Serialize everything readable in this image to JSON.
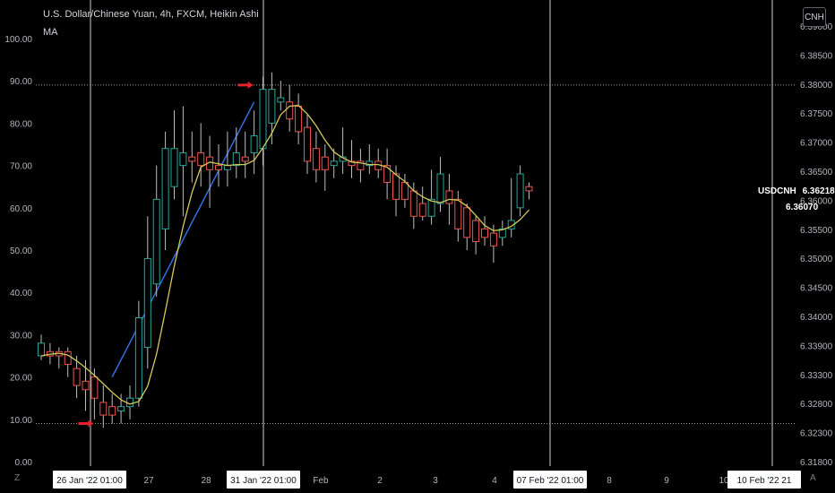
{
  "header": {
    "title": "U.S. Dollar/Chinese Yuan, 4h, FXCM, Heikin Ashi",
    "indicator": "MA",
    "currency_button": "CNH",
    "corner_left": "Z",
    "corner_right": "A"
  },
  "price_badge": {
    "symbol": "USDCNH",
    "last": "6.36218",
    "ma": "6.36070"
  },
  "colors": {
    "up": "#26a69a",
    "down": "#ef5350",
    "ma": "#d4c95a",
    "trend": "#2f6fe0",
    "arrow": "#e8212c",
    "grid_vertical": "#cfcfcf",
    "grid_dotted": "#9598a1"
  },
  "chart_data": {
    "type": "candlestick",
    "left_axis": {
      "ticks": [
        "100.00",
        "90.00",
        "80.00",
        "70.00",
        "60.00",
        "50.00",
        "40.00",
        "30.00",
        "20.00",
        "10.00",
        "0.00"
      ],
      "range": [
        0,
        100
      ]
    },
    "right_axis": {
      "ticks": [
        "6.39000",
        "6.38500",
        "6.38000",
        "6.37500",
        "6.37000",
        "6.36500",
        "6.36000",
        "6.35500",
        "6.35000",
        "6.34500",
        "6.34000",
        "6.33900",
        "6.33300",
        "6.32800",
        "6.32300",
        "6.31800"
      ]
    },
    "x_axis": {
      "ticks": [
        "26 Jan '22   01:00",
        "27",
        "28",
        "31 Jan '22   01:00",
        "Feb",
        "2",
        "3",
        "4",
        "07 Feb '22   01:00",
        "8",
        "9",
        "10",
        "10 Feb '22   21"
      ],
      "highlighted": [
        "26 Jan '22   01:00",
        "31 Jan '22   01:00",
        "07 Feb '22   01:00",
        "10 Feb '22   21"
      ]
    },
    "candles": [
      {
        "o": 25,
        "c": 28,
        "h": 30,
        "l": 24
      },
      {
        "o": 26,
        "c": 25,
        "h": 28,
        "l": 23
      },
      {
        "o": 26,
        "c": 25,
        "h": 27,
        "l": 22
      },
      {
        "o": 26,
        "c": 23,
        "h": 27,
        "l": 20
      },
      {
        "o": 22,
        "c": 18,
        "h": 25,
        "l": 15
      },
      {
        "o": 19,
        "c": 17,
        "h": 24,
        "l": 12
      },
      {
        "o": 20,
        "c": 15,
        "h": 22,
        "l": 10
      },
      {
        "o": 14,
        "c": 11,
        "h": 18,
        "l": 8
      },
      {
        "o": 13,
        "c": 11,
        "h": 16,
        "l": 9
      },
      {
        "o": 12,
        "c": 13,
        "h": 16,
        "l": 9
      },
      {
        "o": 13,
        "c": 15,
        "h": 18,
        "l": 10
      },
      {
        "o": 15,
        "c": 34,
        "h": 38,
        "l": 13
      },
      {
        "o": 27,
        "c": 48,
        "h": 58,
        "l": 22
      },
      {
        "o": 42,
        "c": 62,
        "h": 70,
        "l": 39
      },
      {
        "o": 55,
        "c": 74,
        "h": 78,
        "l": 50
      },
      {
        "o": 65,
        "c": 74,
        "h": 83,
        "l": 62
      },
      {
        "o": 70,
        "c": 73,
        "h": 84,
        "l": 58
      },
      {
        "o": 72,
        "c": 71,
        "h": 78,
        "l": 66
      },
      {
        "o": 73,
        "c": 70,
        "h": 80,
        "l": 65
      },
      {
        "o": 72,
        "c": 69,
        "h": 77,
        "l": 60
      },
      {
        "o": 70,
        "c": 69,
        "h": 75,
        "l": 65
      },
      {
        "o": 69,
        "c": 70,
        "h": 78,
        "l": 65
      },
      {
        "o": 70,
        "c": 73,
        "h": 79,
        "l": 67
      },
      {
        "o": 72,
        "c": 71,
        "h": 78,
        "l": 67
      },
      {
        "o": 73,
        "c": 77,
        "h": 83,
        "l": 68
      },
      {
        "o": 74,
        "c": 88,
        "h": 91,
        "l": 70
      },
      {
        "o": 80,
        "c": 88,
        "h": 92,
        "l": 75
      },
      {
        "o": 85,
        "c": 86,
        "h": 90,
        "l": 83
      },
      {
        "o": 85,
        "c": 81,
        "h": 89,
        "l": 78
      },
      {
        "o": 84,
        "c": 78,
        "h": 87,
        "l": 75
      },
      {
        "o": 79,
        "c": 71,
        "h": 82,
        "l": 68
      },
      {
        "o": 74,
        "c": 69,
        "h": 78,
        "l": 66
      },
      {
        "o": 72,
        "c": 69,
        "h": 75,
        "l": 64
      },
      {
        "o": 70,
        "c": 71,
        "h": 74,
        "l": 67
      },
      {
        "o": 71,
        "c": 72,
        "h": 79,
        "l": 68
      },
      {
        "o": 71,
        "c": 70,
        "h": 76,
        "l": 67
      },
      {
        "o": 71,
        "c": 69,
        "h": 74,
        "l": 66
      },
      {
        "o": 70,
        "c": 71,
        "h": 75,
        "l": 68
      },
      {
        "o": 71,
        "c": 69,
        "h": 74,
        "l": 67
      },
      {
        "o": 70,
        "c": 66,
        "h": 74,
        "l": 62
      },
      {
        "o": 68,
        "c": 62,
        "h": 70,
        "l": 58
      },
      {
        "o": 66,
        "c": 62,
        "h": 68,
        "l": 60
      },
      {
        "o": 64,
        "c": 58,
        "h": 66,
        "l": 55
      },
      {
        "o": 61,
        "c": 58,
        "h": 65,
        "l": 57
      },
      {
        "o": 58,
        "c": 62,
        "h": 69,
        "l": 56
      },
      {
        "o": 61,
        "c": 68,
        "h": 72,
        "l": 59
      },
      {
        "o": 64,
        "c": 61,
        "h": 68,
        "l": 56
      },
      {
        "o": 62,
        "c": 55,
        "h": 64,
        "l": 52
      },
      {
        "o": 60,
        "c": 53,
        "h": 61,
        "l": 50
      },
      {
        "o": 57,
        "c": 52,
        "h": 58,
        "l": 49
      },
      {
        "o": 55,
        "c": 53,
        "h": 58,
        "l": 51
      },
      {
        "o": 54,
        "c": 51,
        "h": 56,
        "l": 47
      },
      {
        "o": 53,
        "c": 55,
        "h": 57,
        "l": 51
      },
      {
        "o": 55,
        "c": 57,
        "h": 67,
        "l": 53
      },
      {
        "o": 60,
        "c": 68,
        "h": 70,
        "l": 58
      },
      {
        "o": 65,
        "c": 64,
        "h": 66,
        "l": 62
      }
    ],
    "ma": [
      25,
      25.4,
      25.6,
      25.2,
      23.8,
      22.2,
      20.4,
      18.4,
      16.4,
      14.6,
      13.6,
      14.2,
      17.8,
      25.4,
      35.6,
      46.2,
      55.6,
      63.6,
      69.6,
      70.8,
      70.4,
      70,
      70.2,
      70.2,
      71.2,
      74.2,
      77.6,
      82,
      84,
      84.2,
      82.2,
      79.4,
      76,
      73.2,
      71.8,
      70.8,
      70.6,
      70.2,
      70.2,
      69.6,
      67.8,
      66.2,
      64,
      62.6,
      61.6,
      61.2,
      62,
      61.8,
      60.4,
      58.2,
      55.8,
      54.6,
      54.8,
      55.6,
      57.2,
      59.5
    ],
    "annotations": {
      "trend_line": [
        {
          "i": 8,
          "v": 20
        },
        {
          "i": 24,
          "v": 85
        }
      ],
      "level_lines": [
        89,
        9
      ],
      "arrows": [
        {
          "i": 24,
          "v": 89
        },
        {
          "i": 6,
          "v": 9
        }
      ]
    }
  }
}
